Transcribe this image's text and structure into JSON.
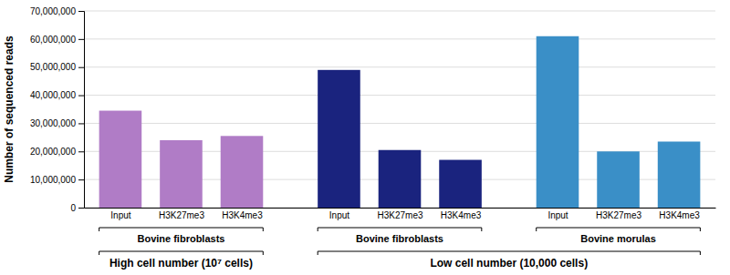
{
  "chart_data": {
    "type": "bar",
    "ylabel": "Number of sequenced reads",
    "categories": [
      "Input",
      "H3K27me3",
      "H3K4me3",
      "Input",
      "H3K27me3",
      "H3K4me3",
      "Input",
      "H3K27me3",
      "H3K4me3"
    ],
    "values": [
      34500000,
      24000000,
      25500000,
      49000000,
      20500000,
      17000000,
      61000000,
      20000000,
      23500000
    ],
    "colors": [
      "#b07cc6",
      "#b07cc6",
      "#b07cc6",
      "#1a237e",
      "#1a237e",
      "#1a237e",
      "#3a8fc7",
      "#3a8fc7",
      "#3a8fc7"
    ],
    "groups": [
      {
        "label": "High cell number (10⁷ cells)",
        "subgroups": [
          "Bovine fibroblasts"
        ]
      },
      {
        "label": "Low cell number (10,000 cells)",
        "subgroups": [
          "Bovine fibroblasts",
          "Bovine morulas"
        ]
      }
    ],
    "ylim": [
      0,
      70000000
    ],
    "yticks": [
      0,
      {
        "value": 10000000,
        "label": "10,000,000"
      },
      {
        "value": 20000000,
        "label": "20,000,000"
      },
      {
        "value": 30000000,
        "label": "30,000,000"
      },
      {
        "value": 40000000,
        "label": "40,000,000"
      },
      {
        "value": 50000000,
        "label": "50,000,000"
      },
      {
        "value": 60000000,
        "label": "60,000,000"
      },
      {
        "value": 70000000,
        "label": "70,000,000"
      }
    ],
    "grid": true
  }
}
